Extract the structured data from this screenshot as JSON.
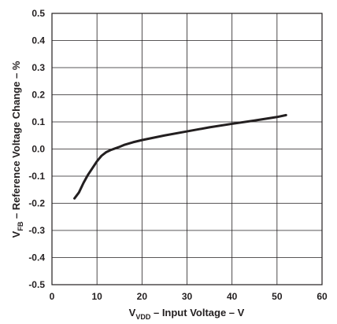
{
  "chart_data": {
    "type": "line",
    "xlabel": {
      "main": "V",
      "sub": "VDD",
      "rest": " – Input Voltage  –  V"
    },
    "ylabel": {
      "main": "V",
      "sub": "FB",
      "rest": " – Reference Voltage Change – %"
    },
    "xlim": [
      0,
      60
    ],
    "ylim": [
      -0.5,
      0.5
    ],
    "x_ticks": [
      "0",
      "10",
      "20",
      "30",
      "40",
      "50",
      "60"
    ],
    "y_ticks": [
      "0.5",
      "0.4",
      "0.3",
      "0.2",
      "0.1",
      "0.0",
      "-0.1",
      "-0.2",
      "-0.3",
      "-0.4",
      "-0.5"
    ],
    "grid": true,
    "line_color": "#231f20",
    "series": [
      {
        "x": [
          5,
          6,
          7,
          8,
          9,
          10,
          11,
          12,
          13,
          14,
          15,
          16,
          18,
          20,
          25,
          30,
          35,
          40,
          45,
          50,
          52
        ],
        "y": [
          -0.182,
          -0.16,
          -0.125,
          -0.095,
          -0.07,
          -0.045,
          -0.025,
          -0.012,
          -0.004,
          0.002,
          0.008,
          0.015,
          0.025,
          0.033,
          0.05,
          0.065,
          0.08,
          0.093,
          0.105,
          0.118,
          0.125
        ]
      }
    ]
  }
}
